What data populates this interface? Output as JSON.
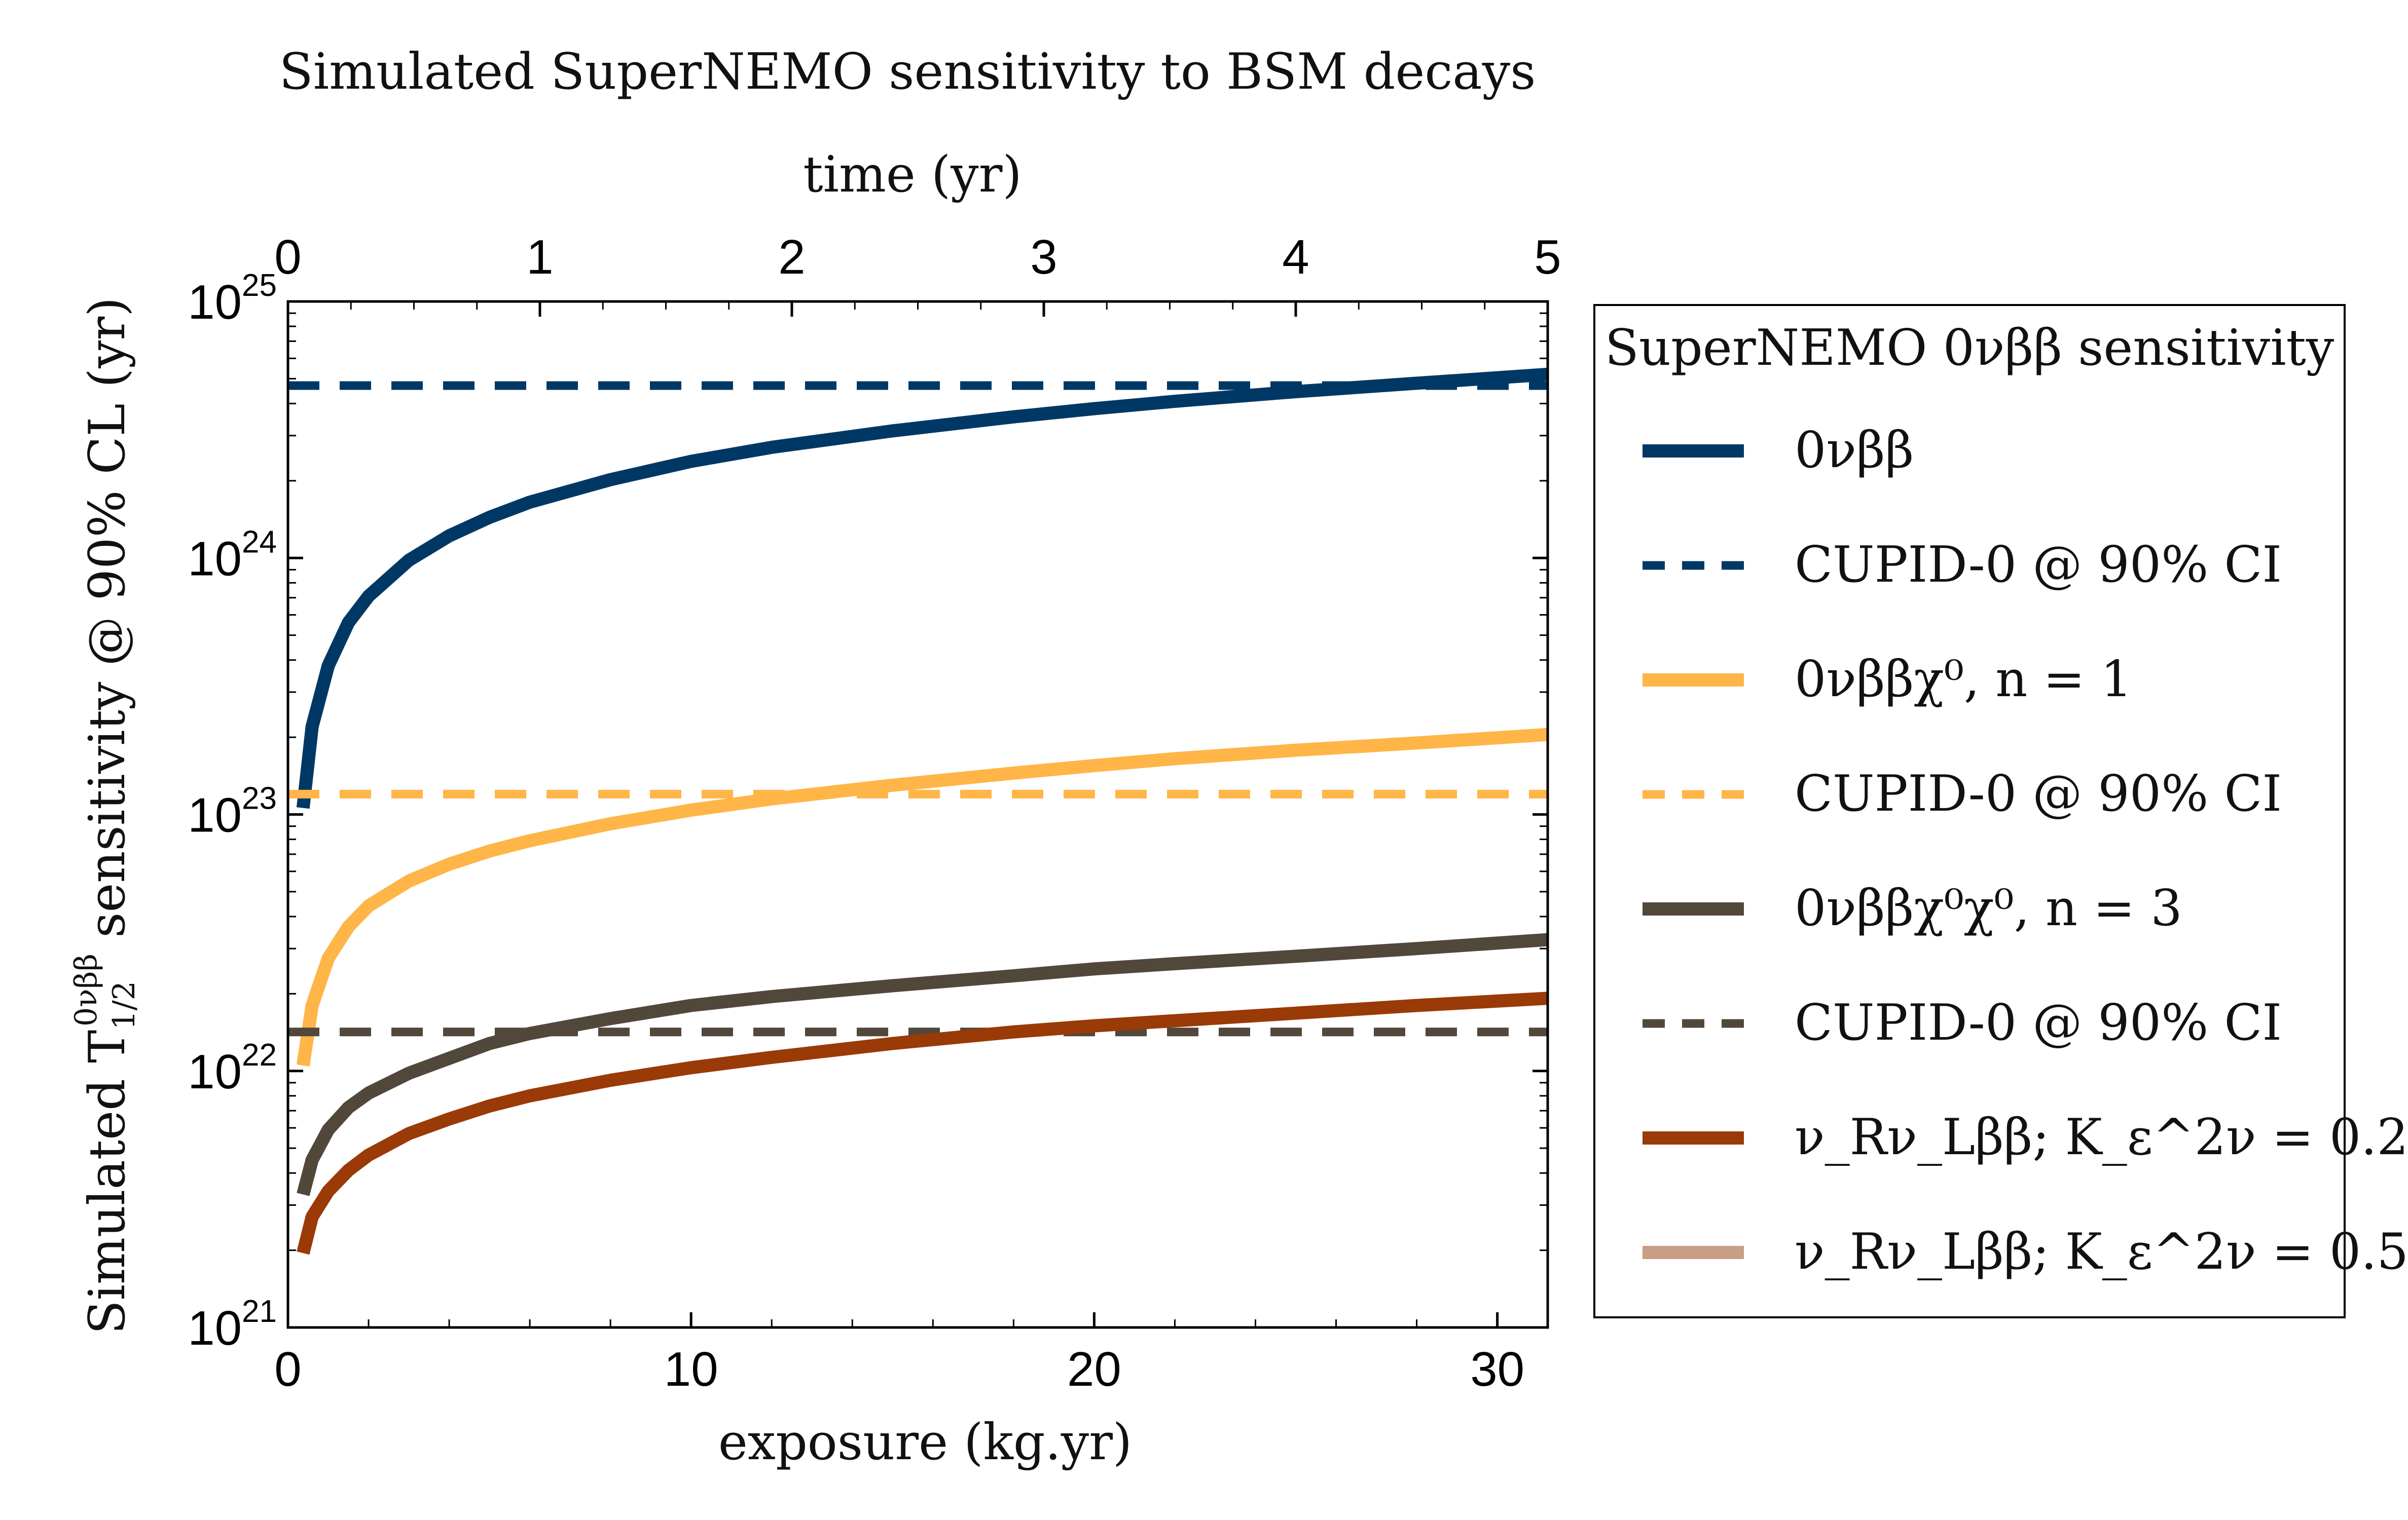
{
  "chart_data": {
    "type": "line",
    "title": "Simulated SuperNEMO sensitivity to BSM decays",
    "xlabel": "exposure (kg.yr)",
    "x2label": "time (yr)",
    "ylabel": "Simulated T",
    "ylabel_sub": "1/2",
    "ylabel_sup": "0νββ",
    "ylabel_rest": " sensitivity @ 90% CL (yr)",
    "xlim": [
      0,
      31.25
    ],
    "x2lim": [
      0,
      5
    ],
    "ylim": [
      1e+21,
      1e+25
    ],
    "yscale": "log",
    "xticks": [
      "0",
      "10",
      "20",
      "30"
    ],
    "x2ticks": [
      "0",
      "1",
      "2",
      "3",
      "4",
      "5"
    ],
    "yticks": [
      {
        "base": "10",
        "exp": "21"
      },
      {
        "base": "10",
        "exp": "22"
      },
      {
        "base": "10",
        "exp": "23"
      },
      {
        "base": "10",
        "exp": "24"
      },
      {
        "base": "10",
        "exp": "25"
      }
    ],
    "legend": {
      "title": "SuperNEMO 0νββ sensitivity",
      "placement": "outside-right",
      "entries": [
        {
          "label": "0νββ",
          "color": "#003865",
          "style": "solid"
        },
        {
          "label": "CUPID-0 @ 90% CI",
          "color": "#003865",
          "style": "dashed"
        },
        {
          "label": "0νββχ⁰, n = 1",
          "color": "#FFB548",
          "style": "solid"
        },
        {
          "label": "CUPID-0 @ 90% CI",
          "color": "#FFB548",
          "style": "dashed"
        },
        {
          "label": "0νββχ⁰χ⁰, n = 3",
          "color": "#52473B",
          "style": "solid"
        },
        {
          "label": "CUPID-0 @ 90% CI",
          "color": "#52473B",
          "style": "dashed"
        },
        {
          "label": "ν_Rν_Lββ; K_ε^2ν = 0.20",
          "color": "#9A3A06",
          "style": "solid"
        },
        {
          "label": "ν_Rν_Lββ; K_ε^2ν = 0.50",
          "color": "#C89E84",
          "style": "solid"
        }
      ]
    },
    "series": [
      {
        "name": "0νββ",
        "color": "#003865",
        "style": "solid",
        "x": [
          0.375,
          0.6,
          1,
          1.5,
          2,
          3,
          4,
          5,
          6,
          8,
          10,
          12,
          15,
          18,
          20,
          22,
          25,
          28,
          31.25
        ],
        "y": [
          1.06e+23,
          2.2e+23,
          3.8e+23,
          5.6e+23,
          7.1e+23,
          9.8e+23,
          1.22e+24,
          1.44e+24,
          1.65e+24,
          2.02e+24,
          2.38e+24,
          2.7e+24,
          3.13e+24,
          3.55e+24,
          3.82e+24,
          4.08e+24,
          4.45e+24,
          4.8e+24,
          5.2e+24
        ]
      },
      {
        "name": "CUPID-0 @ 90% CI",
        "color": "#003865",
        "style": "dashed",
        "x": [
          0,
          31.25
        ],
        "y": [
          4.7e+24,
          4.7e+24
        ]
      },
      {
        "name": "0νββχ⁰, n = 1",
        "color": "#FFB548",
        "style": "solid",
        "x": [
          0.375,
          0.6,
          1,
          1.5,
          2,
          3,
          4,
          5,
          6,
          8,
          10,
          12,
          15,
          18,
          20,
          22,
          25,
          28,
          31.25
        ],
        "y": [
          1.05e+22,
          1.8e+22,
          2.75e+22,
          3.65e+22,
          4.4e+22,
          5.5e+22,
          6.4e+22,
          7.2e+22,
          7.9e+22,
          9.2e+22,
          1.04e+23,
          1.15e+23,
          1.3e+23,
          1.45e+23,
          1.55e+23,
          1.65e+23,
          1.78e+23,
          1.9e+23,
          2.05e+23
        ]
      },
      {
        "name": "CUPID-0 @ 90% CI",
        "color": "#FFB548",
        "style": "dashed",
        "x": [
          0,
          31.25
        ],
        "y": [
          1.2e+23,
          1.2e+23
        ]
      },
      {
        "name": "0νββχ⁰χ⁰, n = 3",
        "color": "#52473B",
        "style": "solid",
        "x": [
          0.375,
          0.6,
          1,
          1.5,
          2,
          3,
          4,
          5,
          6,
          8,
          10,
          12,
          15,
          18,
          20,
          22,
          25,
          28,
          31.25
        ],
        "y": [
          3.3e+21,
          4.5e+21,
          5.9e+21,
          7.2e+21,
          8.2e+21,
          9.8e+21,
          1.12e+22,
          1.28e+22,
          1.4e+22,
          1.6e+22,
          1.8e+22,
          1.95e+22,
          2.15e+22,
          2.35e+22,
          2.5e+22,
          2.62e+22,
          2.8e+22,
          3e+22,
          3.25e+22
        ]
      },
      {
        "name": "CUPID-0 @ 90% CI",
        "color": "#52473B",
        "style": "dashed",
        "x": [
          0,
          31.25
        ],
        "y": [
          1.42e+22,
          1.42e+22
        ]
      },
      {
        "name": "ν_Rν_Lββ; K_ε^2ν = 0.20",
        "color": "#9A3A06",
        "style": "solid",
        "x": [
          0.375,
          0.6,
          1,
          1.5,
          2,
          3,
          4,
          5,
          6,
          8,
          10,
          12,
          15,
          18,
          20,
          22,
          25,
          28,
          31.25
        ],
        "y": [
          1.95e+21,
          2.7e+21,
          3.4e+21,
          4.1e+21,
          4.7e+21,
          5.7e+21,
          6.5e+21,
          7.3e+21,
          8e+21,
          9.2e+21,
          1.03e+22,
          1.13e+22,
          1.28e+22,
          1.42e+22,
          1.5e+22,
          1.57e+22,
          1.68e+22,
          1.8e+22,
          1.92e+22
        ]
      }
    ]
  }
}
